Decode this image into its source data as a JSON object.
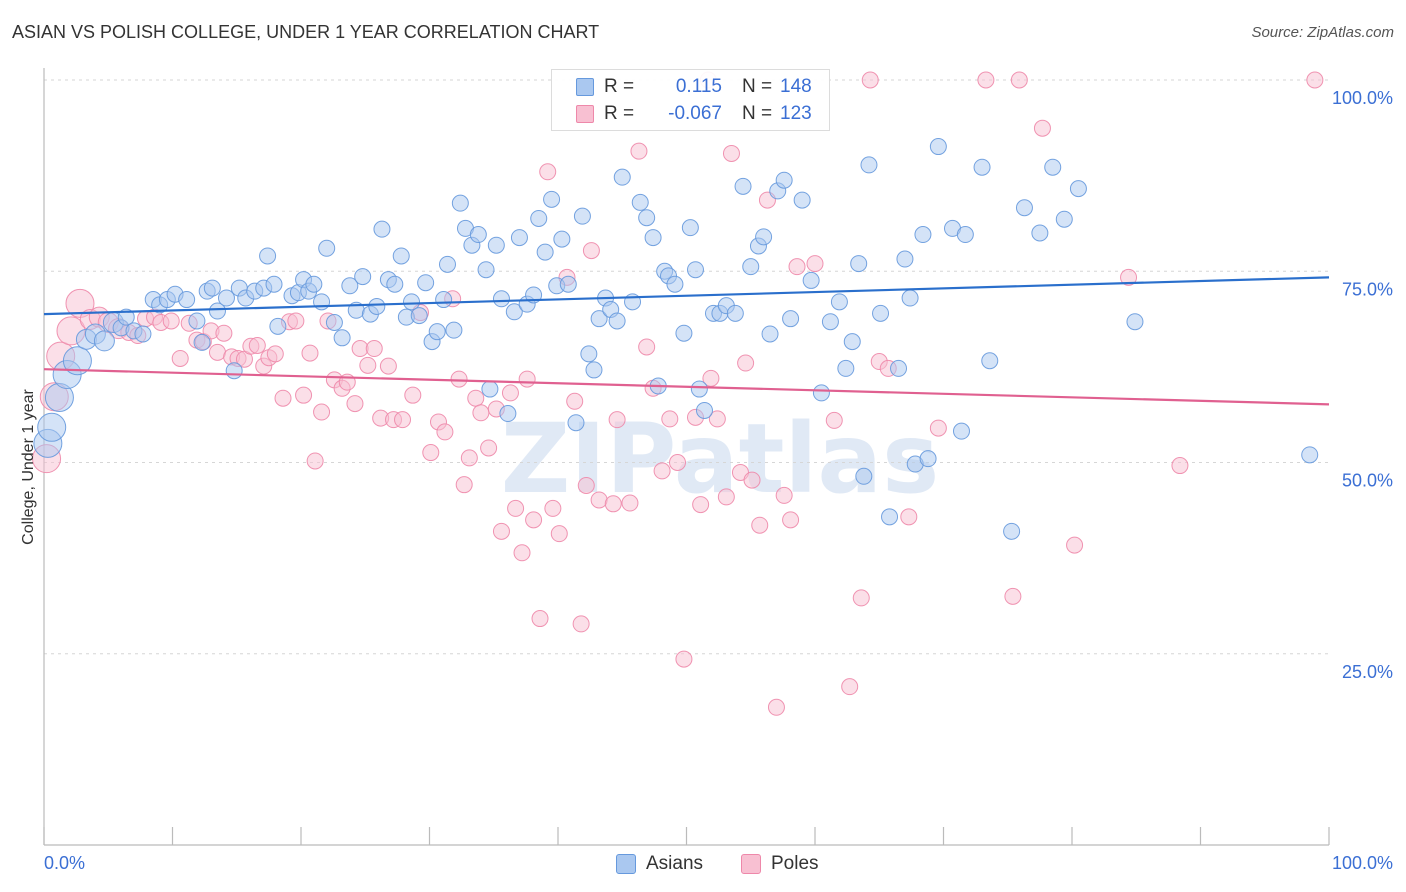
{
  "title": "ASIAN VS POLISH COLLEGE, UNDER 1 YEAR CORRELATION CHART",
  "source": "Source: ZipAtlas.com",
  "watermark": "ZIPatlas",
  "legend": {
    "rows": [
      {
        "r_label": "R =",
        "r_value": "0.115",
        "n_label": "N =",
        "n_value": "148",
        "color": "#6699dd",
        "fill": "#aac8f0"
      },
      {
        "r_label": "R =",
        "r_value": "-0.067",
        "n_label": "N =",
        "n_value": "123",
        "color": "#ee88aa",
        "fill": "#f8c0d2"
      }
    ]
  },
  "bottom_legend": [
    {
      "label": "Asians",
      "color": "#6699dd",
      "fill": "#aac8f0"
    },
    {
      "label": "Poles",
      "color": "#ee88aa",
      "fill": "#f8c0d2"
    }
  ],
  "chart_data": {
    "type": "scatter",
    "title": "ASIAN VS POLISH COLLEGE, UNDER 1 YEAR CORRELATION CHART",
    "xlabel": "",
    "ylabel": "College, Under 1 year",
    "xlim": [
      0,
      100
    ],
    "ylim": [
      0,
      100
    ],
    "x_tick_labels": [
      "0.0%",
      "100.0%"
    ],
    "y_tick_labels": [
      "100.0%",
      "75.0%",
      "50.0%",
      "25.0%"
    ],
    "y_ticks": [
      100,
      75,
      50,
      25
    ],
    "grid": true,
    "legend_position": "top-center",
    "series": [
      {
        "name": "Asians",
        "color": "#6699dd",
        "trend": {
          "x": [
            0,
            100
          ],
          "y": [
            69.4,
            74.2
          ]
        },
        "points": [
          [
            0.3,
            52.5
          ],
          [
            0.6,
            54.6
          ],
          [
            1.2,
            58.5
          ],
          [
            1.8,
            61.5
          ],
          [
            2.6,
            63.3
          ],
          [
            3.3,
            66.1
          ],
          [
            4.0,
            66.8
          ],
          [
            4.7,
            65.9
          ],
          [
            5.4,
            68.3
          ],
          [
            6.0,
            67.6
          ],
          [
            6.4,
            69.0
          ],
          [
            7.0,
            67.2
          ],
          [
            7.7,
            66.8
          ],
          [
            8.5,
            71.3
          ],
          [
            9.0,
            70.6
          ],
          [
            9.6,
            71.3
          ],
          [
            10.2,
            72.0
          ],
          [
            11.1,
            71.3
          ],
          [
            11.9,
            68.5
          ],
          [
            12.3,
            65.7
          ],
          [
            12.7,
            72.4
          ],
          [
            13.1,
            72.8
          ],
          [
            13.5,
            69.8
          ],
          [
            14.2,
            71.5
          ],
          [
            14.8,
            62.0
          ],
          [
            15.2,
            72.8
          ],
          [
            15.7,
            71.5
          ],
          [
            16.4,
            72.4
          ],
          [
            17.1,
            72.8
          ],
          [
            17.4,
            77.0
          ],
          [
            17.9,
            73.3
          ],
          [
            18.2,
            67.8
          ],
          [
            19.3,
            71.8
          ],
          [
            19.8,
            72.2
          ],
          [
            20.2,
            73.9
          ],
          [
            20.6,
            72.4
          ],
          [
            21.0,
            73.3
          ],
          [
            21.6,
            71.0
          ],
          [
            22.0,
            78.0
          ],
          [
            22.6,
            68.3
          ],
          [
            23.2,
            66.3
          ],
          [
            23.8,
            73.1
          ],
          [
            24.3,
            69.9
          ],
          [
            24.8,
            74.3
          ],
          [
            25.4,
            69.4
          ],
          [
            25.9,
            70.4
          ],
          [
            26.3,
            80.5
          ],
          [
            26.8,
            73.9
          ],
          [
            27.3,
            73.3
          ],
          [
            27.8,
            77.0
          ],
          [
            28.2,
            69.0
          ],
          [
            28.6,
            71.0
          ],
          [
            29.2,
            69.2
          ],
          [
            29.7,
            73.5
          ],
          [
            30.2,
            65.8
          ],
          [
            30.6,
            67.1
          ],
          [
            31.1,
            71.3
          ],
          [
            31.4,
            75.9
          ],
          [
            31.9,
            67.3
          ],
          [
            32.4,
            83.9
          ],
          [
            32.8,
            80.6
          ],
          [
            33.3,
            78.4
          ],
          [
            33.8,
            79.8
          ],
          [
            34.4,
            75.2
          ],
          [
            34.7,
            59.6
          ],
          [
            35.2,
            78.4
          ],
          [
            35.6,
            71.4
          ],
          [
            36.1,
            56.4
          ],
          [
            36.6,
            69.7
          ],
          [
            37.0,
            79.4
          ],
          [
            37.6,
            70.7
          ],
          [
            38.1,
            71.9
          ],
          [
            38.5,
            81.9
          ],
          [
            39.0,
            77.5
          ],
          [
            39.5,
            84.4
          ],
          [
            39.9,
            73.1
          ],
          [
            40.3,
            79.2
          ],
          [
            40.8,
            73.3
          ],
          [
            41.4,
            55.2
          ],
          [
            41.9,
            82.2
          ],
          [
            42.4,
            64.2
          ],
          [
            42.8,
            62.1
          ],
          [
            43.2,
            68.8
          ],
          [
            43.7,
            71.5
          ],
          [
            44.1,
            70.0
          ],
          [
            44.6,
            68.5
          ],
          [
            45.0,
            87.3
          ],
          [
            45.8,
            71.0
          ],
          [
            46.4,
            84.0
          ],
          [
            46.9,
            82.0
          ],
          [
            47.4,
            79.4
          ],
          [
            47.8,
            60.0
          ],
          [
            48.3,
            75.0
          ],
          [
            48.6,
            74.4
          ],
          [
            49.1,
            73.3
          ],
          [
            49.8,
            66.9
          ],
          [
            50.3,
            80.7
          ],
          [
            50.7,
            75.2
          ],
          [
            51.0,
            59.6
          ],
          [
            51.4,
            56.8
          ],
          [
            52.1,
            69.5
          ],
          [
            52.6,
            69.5
          ],
          [
            53.1,
            70.5
          ],
          [
            53.8,
            69.5
          ],
          [
            54.4,
            86.1
          ],
          [
            55.0,
            75.6
          ],
          [
            55.6,
            78.3
          ],
          [
            56.0,
            79.5
          ],
          [
            56.5,
            66.8
          ],
          [
            57.1,
            85.5
          ],
          [
            57.6,
            86.9
          ],
          [
            58.1,
            68.8
          ],
          [
            59.0,
            84.3
          ],
          [
            59.7,
            73.8
          ],
          [
            60.5,
            59.1
          ],
          [
            61.2,
            68.4
          ],
          [
            61.9,
            71.0
          ],
          [
            62.4,
            62.3
          ],
          [
            62.9,
            65.8
          ],
          [
            63.4,
            76.0
          ],
          [
            63.8,
            48.2
          ],
          [
            64.2,
            88.9
          ],
          [
            65.1,
            69.5
          ],
          [
            65.8,
            42.9
          ],
          [
            66.5,
            62.3
          ],
          [
            67.0,
            76.6
          ],
          [
            67.4,
            71.5
          ],
          [
            67.8,
            49.8
          ],
          [
            68.4,
            79.8
          ],
          [
            68.8,
            50.5
          ],
          [
            69.6,
            91.3
          ],
          [
            70.7,
            80.6
          ],
          [
            71.4,
            54.1
          ],
          [
            71.7,
            79.8
          ],
          [
            73.0,
            88.6
          ],
          [
            73.6,
            63.3
          ],
          [
            75.3,
            41.0
          ],
          [
            76.3,
            83.3
          ],
          [
            77.5,
            80.0
          ],
          [
            78.5,
            88.6
          ],
          [
            79.4,
            81.8
          ],
          [
            80.5,
            85.8
          ],
          [
            84.9,
            68.4
          ],
          [
            98.5,
            51.0
          ]
        ]
      },
      {
        "name": "Poles",
        "color": "#ee88aa",
        "trend": {
          "x": [
            0,
            100
          ],
          "y": [
            62.2,
            57.6
          ]
        },
        "points": [
          [
            0.2,
            50.5
          ],
          [
            0.8,
            58.6
          ],
          [
            1.3,
            63.9
          ],
          [
            2.1,
            67.2
          ],
          [
            2.8,
            70.8
          ],
          [
            3.6,
            68.7
          ],
          [
            4.3,
            69.0
          ],
          [
            5.0,
            68.3
          ],
          [
            5.8,
            67.5
          ],
          [
            6.6,
            67.0
          ],
          [
            7.3,
            66.6
          ],
          [
            7.9,
            68.8
          ],
          [
            8.6,
            69.0
          ],
          [
            9.1,
            68.3
          ],
          [
            9.9,
            68.5
          ],
          [
            10.6,
            63.6
          ],
          [
            11.3,
            68.2
          ],
          [
            11.9,
            66.0
          ],
          [
            12.4,
            65.8
          ],
          [
            13.0,
            67.2
          ],
          [
            13.5,
            64.4
          ],
          [
            14.0,
            66.9
          ],
          [
            14.6,
            63.8
          ],
          [
            15.1,
            63.6
          ],
          [
            15.6,
            63.5
          ],
          [
            16.1,
            65.2
          ],
          [
            16.6,
            65.3
          ],
          [
            17.1,
            62.6
          ],
          [
            17.5,
            63.7
          ],
          [
            18.0,
            64.2
          ],
          [
            18.6,
            58.4
          ],
          [
            19.1,
            68.4
          ],
          [
            19.6,
            68.5
          ],
          [
            20.2,
            58.8
          ],
          [
            20.7,
            64.3
          ],
          [
            21.1,
            50.2
          ],
          [
            21.6,
            56.6
          ],
          [
            22.1,
            68.5
          ],
          [
            22.6,
            60.8
          ],
          [
            23.2,
            59.7
          ],
          [
            23.6,
            60.5
          ],
          [
            24.2,
            57.7
          ],
          [
            24.6,
            64.9
          ],
          [
            25.2,
            62.7
          ],
          [
            25.7,
            64.9
          ],
          [
            26.2,
            55.8
          ],
          [
            26.8,
            62.6
          ],
          [
            27.2,
            55.6
          ],
          [
            27.9,
            55.6
          ],
          [
            28.7,
            58.8
          ],
          [
            29.3,
            69.6
          ],
          [
            30.1,
            51.3
          ],
          [
            30.7,
            55.3
          ],
          [
            31.2,
            54.0
          ],
          [
            31.8,
            71.4
          ],
          [
            32.3,
            60.9
          ],
          [
            32.7,
            47.1
          ],
          [
            33.1,
            50.6
          ],
          [
            33.6,
            58.4
          ],
          [
            34.0,
            56.5
          ],
          [
            34.6,
            51.9
          ],
          [
            35.2,
            57.0
          ],
          [
            35.6,
            41.0
          ],
          [
            36.3,
            59.1
          ],
          [
            36.7,
            44.0
          ],
          [
            37.2,
            38.2
          ],
          [
            37.6,
            60.9
          ],
          [
            38.1,
            42.5
          ],
          [
            38.6,
            29.6
          ],
          [
            39.2,
            88.0
          ],
          [
            39.6,
            44.0
          ],
          [
            40.1,
            40.7
          ],
          [
            40.7,
            74.2
          ],
          [
            41.3,
            58.0
          ],
          [
            41.8,
            28.9
          ],
          [
            42.2,
            47.0
          ],
          [
            42.6,
            77.7
          ],
          [
            43.2,
            45.1
          ],
          [
            44.3,
            44.6
          ],
          [
            44.6,
            55.6
          ],
          [
            45.6,
            44.7
          ],
          [
            46.3,
            90.7
          ],
          [
            46.9,
            65.1
          ],
          [
            47.4,
            59.7
          ],
          [
            48.1,
            48.9
          ],
          [
            48.7,
            55.7
          ],
          [
            49.3,
            50.0
          ],
          [
            49.8,
            24.3
          ],
          [
            50.7,
            55.9
          ],
          [
            51.1,
            44.5
          ],
          [
            51.7,
            100.0
          ],
          [
            51.9,
            61.0
          ],
          [
            52.4,
            55.7
          ],
          [
            53.1,
            45.5
          ],
          [
            53.5,
            90.4
          ],
          [
            54.2,
            48.7
          ],
          [
            54.6,
            63.0
          ],
          [
            55.1,
            47.7
          ],
          [
            55.7,
            41.8
          ],
          [
            56.3,
            84.3
          ],
          [
            57.0,
            18.0
          ],
          [
            57.6,
            45.7
          ],
          [
            58.1,
            42.5
          ],
          [
            58.6,
            75.6
          ],
          [
            60.0,
            76.0
          ],
          [
            61.5,
            55.5
          ],
          [
            62.7,
            20.7
          ],
          [
            63.6,
            32.3
          ],
          [
            64.3,
            100.0
          ],
          [
            65.0,
            63.2
          ],
          [
            65.7,
            62.3
          ],
          [
            67.3,
            42.9
          ],
          [
            69.6,
            54.5
          ],
          [
            73.3,
            100.0
          ],
          [
            75.4,
            32.5
          ],
          [
            75.9,
            100.0
          ],
          [
            77.7,
            93.7
          ],
          [
            80.2,
            39.2
          ],
          [
            84.4,
            74.2
          ],
          [
            88.4,
            49.6
          ],
          [
            98.9,
            100.0
          ]
        ]
      }
    ]
  }
}
